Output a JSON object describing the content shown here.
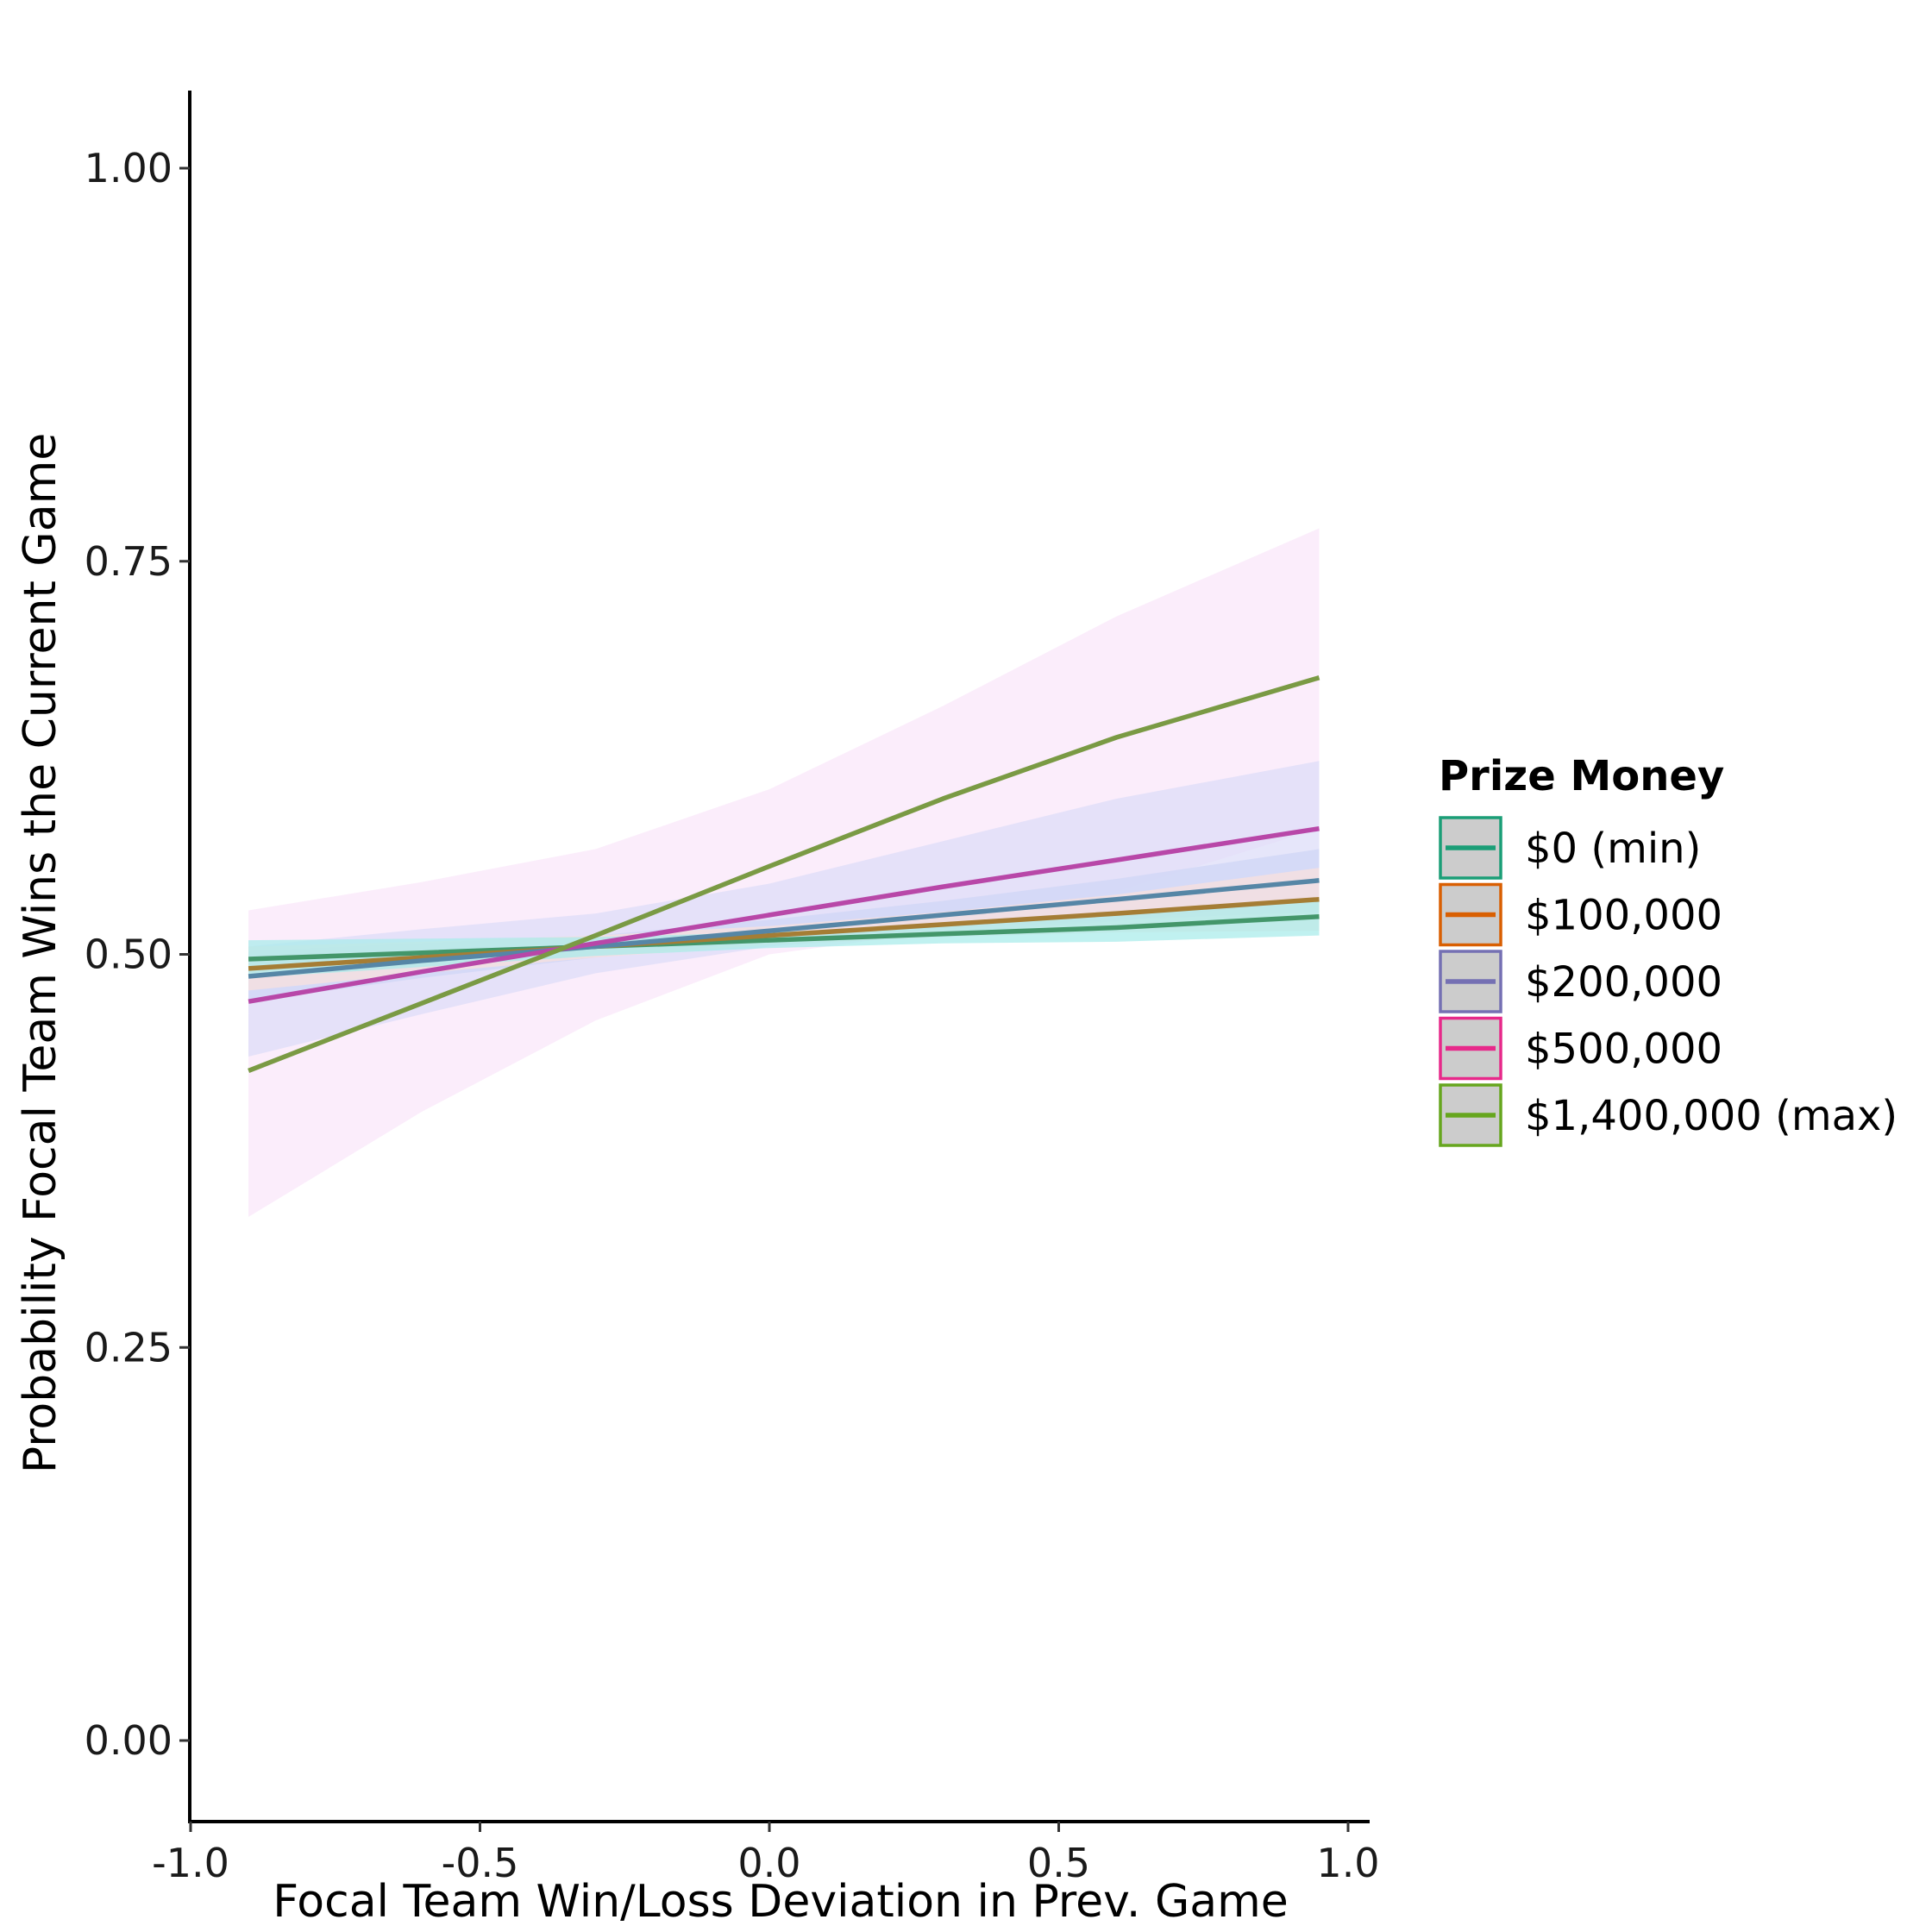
{
  "chart_data": {
    "type": "line",
    "xlabel": "Focal Team Win/Loss Deviation in Prev. Game",
    "ylabel": "Probability Focal Team Wins the Current Game",
    "xlim": [
      -1.0,
      1.05
    ],
    "ylim": [
      -0.05,
      1.05
    ],
    "xticks": [
      -1.0,
      -0.5,
      0.0,
      0.5,
      1.0
    ],
    "xtick_labels": [
      "-1.0",
      "-0.5",
      "0.0",
      "0.5",
      "1.0"
    ],
    "yticks": [
      0.0,
      0.25,
      0.5,
      0.75,
      1.0
    ],
    "ytick_labels": [
      "0.00",
      "0.25",
      "0.50",
      "0.75",
      "1.00"
    ],
    "grid": false,
    "legend": {
      "title": "Prize Money",
      "placement": "right"
    },
    "x": [
      -0.9,
      -0.6,
      -0.3,
      0.0,
      0.3,
      0.6,
      0.95
    ],
    "series": [
      {
        "name": "$0 (min)",
        "line_color": "#43966a",
        "legend_color": "#1b9e77",
        "ribbon_color": "#a7ecea",
        "values": [
          0.497,
          0.501,
          0.505,
          0.509,
          0.513,
          0.517,
          0.524
        ],
        "lower": [
          0.485,
          0.492,
          0.499,
          0.504,
          0.507,
          0.508,
          0.512
        ],
        "upper": [
          0.509,
          0.51,
          0.511,
          0.514,
          0.519,
          0.526,
          0.536
        ]
      },
      {
        "name": "$100,000",
        "line_color": "#a57d35",
        "legend_color": "#d95f02",
        "ribbon_color": "#fbe0dc",
        "values": [
          0.491,
          0.498,
          0.505,
          0.512,
          0.519,
          0.526,
          0.535
        ],
        "lower": [
          0.477,
          0.488,
          0.498,
          0.506,
          0.511,
          0.514,
          0.515
        ],
        "upper": [
          0.505,
          0.508,
          0.512,
          0.518,
          0.527,
          0.538,
          0.555
        ]
      },
      {
        "name": "$200,000",
        "line_color": "#5686a6",
        "legend_color": "#7570b3",
        "ribbon_color": "#cfd6f5",
        "values": [
          0.486,
          0.496,
          0.505,
          0.515,
          0.525,
          0.535,
          0.547
        ],
        "lower": [
          0.47,
          0.485,
          0.498,
          0.508,
          0.516,
          0.522,
          0.527
        ],
        "upper": [
          0.502,
          0.507,
          0.512,
          0.522,
          0.534,
          0.548,
          0.567
        ]
      },
      {
        "name": "$500,000",
        "line_color": "#b847a8",
        "legend_color": "#e7298a",
        "ribbon_color": "#dcdcf8",
        "values": [
          0.47,
          0.489,
          0.507,
          0.525,
          0.543,
          0.56,
          0.58
        ],
        "lower": [
          0.435,
          0.462,
          0.488,
          0.505,
          0.514,
          0.521,
          0.535
        ],
        "upper": [
          0.505,
          0.516,
          0.526,
          0.545,
          0.572,
          0.599,
          0.623
        ]
      },
      {
        "name": "$1,400,000 (max)",
        "line_color": "#7a9a44",
        "legend_color": "#66a61e",
        "ribbon_color": "#f9e6fa",
        "values": [
          0.426,
          0.469,
          0.512,
          0.556,
          0.599,
          0.638,
          0.676
        ],
        "lower": [
          0.333,
          0.4,
          0.458,
          0.5,
          0.515,
          0.54,
          0.58
        ],
        "upper": [
          0.528,
          0.546,
          0.567,
          0.605,
          0.658,
          0.715,
          0.771
        ]
      }
    ]
  }
}
